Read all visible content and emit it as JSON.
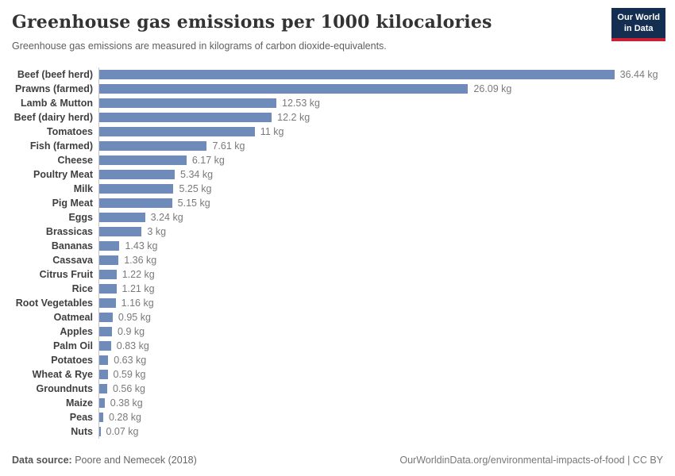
{
  "header": {
    "title": "Greenhouse gas emissions per 1000 kilocalories",
    "subtitle": "Greenhouse gas emissions are measured in kilograms of carbon dioxide-equivalents.",
    "logo": {
      "line1": "Our World",
      "line2": "in Data"
    }
  },
  "chart_data": {
    "type": "bar",
    "orientation": "horizontal",
    "title": "Greenhouse gas emissions per 1000 kilocalories",
    "unit": "kg",
    "xlim": [
      0,
      36.44
    ],
    "grid": false,
    "legend": false,
    "bar_color": "#6e8bba",
    "axis_line_color": "#c8c8c8",
    "categories": [
      "Beef (beef herd)",
      "Prawns (farmed)",
      "Lamb & Mutton",
      "Beef (dairy herd)",
      "Tomatoes",
      "Fish (farmed)",
      "Cheese",
      "Poultry Meat",
      "Milk",
      "Pig Meat",
      "Eggs",
      "Brassicas",
      "Bananas",
      "Cassava",
      "Citrus Fruit",
      "Rice",
      "Root Vegetables",
      "Oatmeal",
      "Apples",
      "Palm Oil",
      "Potatoes",
      "Wheat & Rye",
      "Groundnuts",
      "Maize",
      "Peas",
      "Nuts"
    ],
    "values": [
      36.44,
      26.09,
      12.53,
      12.2,
      11,
      7.61,
      6.17,
      5.34,
      5.25,
      5.15,
      3.24,
      3,
      1.43,
      1.36,
      1.22,
      1.21,
      1.16,
      0.95,
      0.9,
      0.83,
      0.63,
      0.59,
      0.56,
      0.38,
      0.28,
      0.07
    ],
    "value_labels": [
      "36.44 kg",
      "26.09 kg",
      "12.53 kg",
      "12.2 kg",
      "11 kg",
      "7.61 kg",
      "6.17 kg",
      "5.34 kg",
      "5.25 kg",
      "5.15 kg",
      "3.24 kg",
      "3 kg",
      "1.43 kg",
      "1.36 kg",
      "1.22 kg",
      "1.21 kg",
      "1.16 kg",
      "0.95 kg",
      "0.9 kg",
      "0.83 kg",
      "0.63 kg",
      "0.59 kg",
      "0.56 kg",
      "0.38 kg",
      "0.28 kg",
      "0.07 kg"
    ]
  },
  "footer": {
    "source_label": "Data source:",
    "source_value": " Poore and Nemecek (2018)",
    "link": "OurWorldinData.org/environmental-impacts-of-food | CC BY"
  },
  "colors": {
    "bar": "#6e8bba",
    "logo_background": "#142e52",
    "logo_accent_red": "#cb2034",
    "title_text": "#333333",
    "subtitle_text": "#5e5e5e",
    "category_text": "#3f3f3f",
    "value_text": "#7a7a7a"
  }
}
